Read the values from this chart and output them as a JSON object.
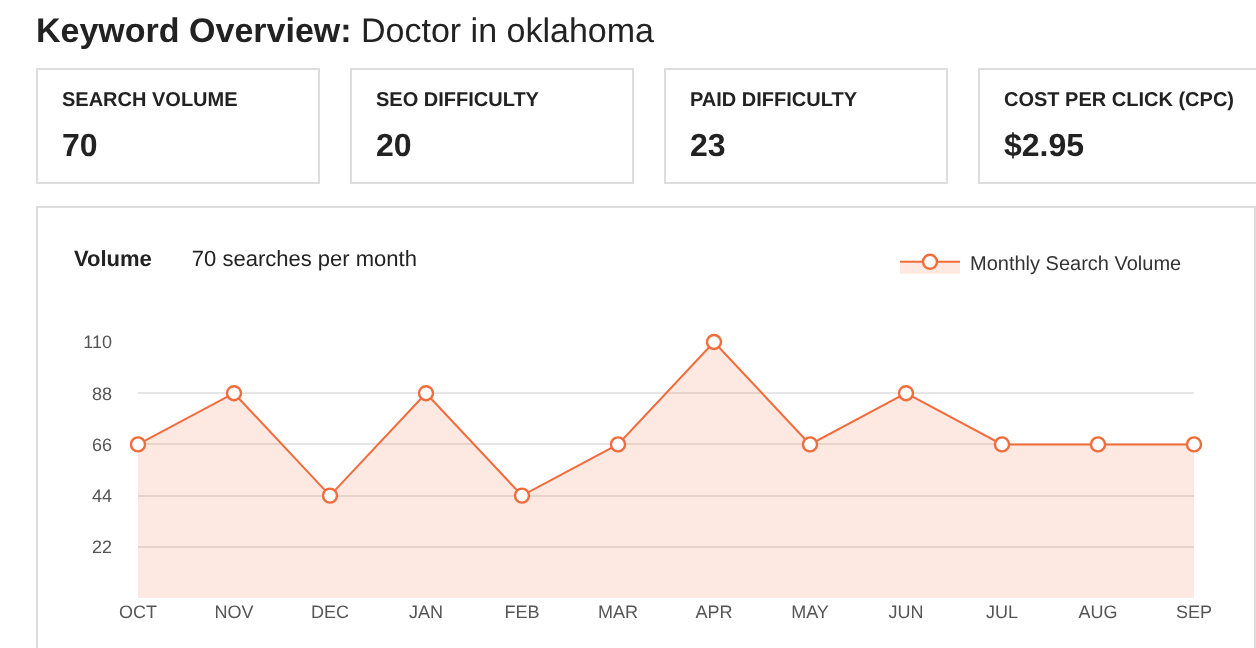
{
  "chart_data": [
    {
      "type": "other",
      "title": "Keyword Overview:",
      "subtitle": "Doctor in oklahoma",
      "annotations": [
        "SEARCH VOLUME",
        "70",
        "SEO DIFFICULTY",
        "20",
        "PAID DIFFICULTY",
        "23",
        "COST PER CLICK (CPC)",
        "$2.95"
      ]
    },
    {
      "type": "area",
      "title": "Volume",
      "subtitle": "70 searches per month",
      "categories": [
        "OCT",
        "NOV",
        "DEC",
        "JAN",
        "FEB",
        "MAR",
        "APR",
        "MAY",
        "JUN",
        "JUL",
        "AUG",
        "SEP"
      ],
      "series": [
        {
          "name": "Monthly Search Volume",
          "color": "#f26b3a",
          "values": [
            66,
            88,
            44,
            88,
            44,
            66,
            110,
            66,
            88,
            66,
            66,
            66
          ]
        }
      ],
      "ylim": [
        0,
        110
      ],
      "yticks": [
        22,
        44,
        66,
        88,
        110
      ],
      "grid": "y",
      "legend": "top right",
      "marker": "circle"
    }
  ]
}
